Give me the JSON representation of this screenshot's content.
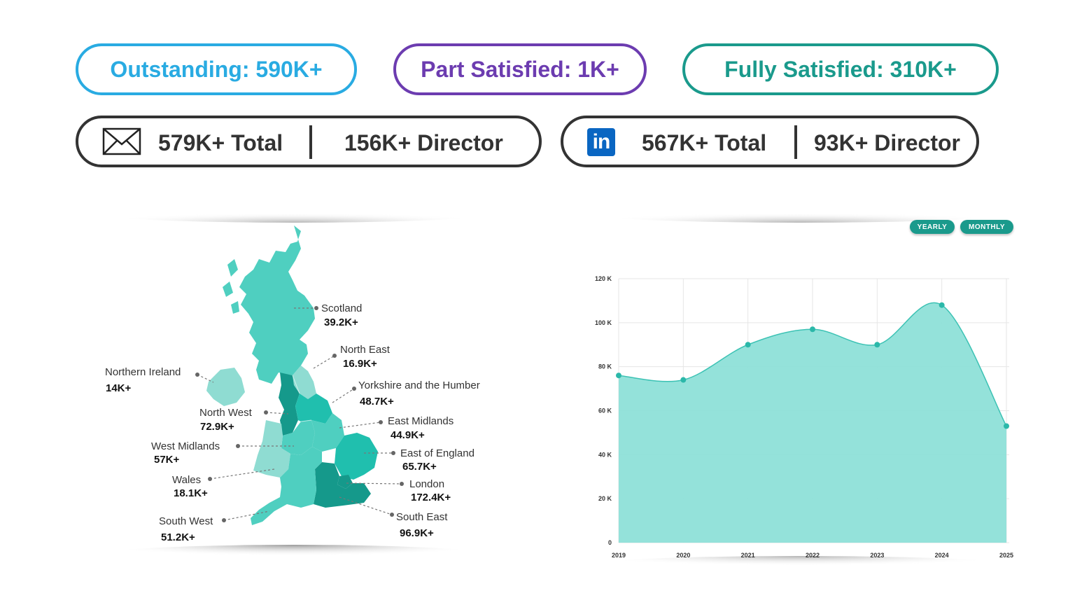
{
  "summary_pills": {
    "outstanding": "Outstanding: 590K+",
    "part_satisfied": "Part Satisfied: 1K+",
    "fully_satisfied": "Fully Satisfied: 310K+"
  },
  "email_stats": {
    "icon": "envelope-icon",
    "total": "579K+ Total",
    "director": "156K+ Director"
  },
  "linkedin_stats": {
    "icon": "linkedin-icon",
    "icon_text": "in",
    "total": "567K+ Total",
    "director": "93K+ Director"
  },
  "colors": {
    "outstanding": "#29abe2",
    "part_satisfied": "#6c3cb0",
    "fully_satisfied": "#1a9a8c",
    "map_light": "#8fdcd2",
    "map_mid": "#4fcfc0",
    "map_strong": "#20bfae",
    "map_dark": "#15998b",
    "area_fill": "#8ee0d8",
    "area_line": "#3cc2b4"
  },
  "map": {
    "regions": [
      {
        "name": "Scotland",
        "value": "39.2K+"
      },
      {
        "name": "North East",
        "value": "16.9K+"
      },
      {
        "name": "Northern Ireland",
        "value": "14K+"
      },
      {
        "name": "Yorkshire and the Humber",
        "value": "48.7K+"
      },
      {
        "name": "North West",
        "value": "72.9K+"
      },
      {
        "name": "East Midlands",
        "value": "44.9K+"
      },
      {
        "name": "West Midlands",
        "value": "57K+"
      },
      {
        "name": "East of England",
        "value": "65.7K+"
      },
      {
        "name": "Wales",
        "value": "18.1K+"
      },
      {
        "name": "London",
        "value": "172.4K+"
      },
      {
        "name": "South West",
        "value": "51.2K+"
      },
      {
        "name": "South East",
        "value": "96.9K+"
      }
    ]
  },
  "chart_controls": {
    "yearly": "YEARLY",
    "monthly": "MONTHLY"
  },
  "chart_data": {
    "type": "area",
    "x": [
      "2019",
      "2020",
      "2021",
      "2022",
      "2023",
      "2024",
      "2025"
    ],
    "values": [
      76,
      74,
      90,
      97,
      90,
      108,
      53
    ],
    "y_ticks": [
      "0",
      "20 K",
      "40 K",
      "60 K",
      "80 K",
      "100 K",
      "120 K"
    ],
    "ylim": [
      0,
      120
    ],
    "grid": true,
    "xlabel": "",
    "ylabel": ""
  }
}
